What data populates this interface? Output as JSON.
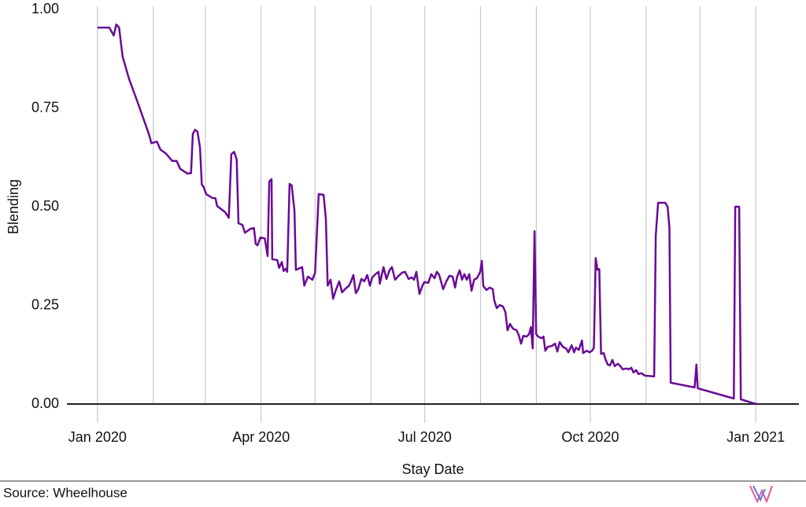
{
  "chart_data": {
    "type": "line",
    "xlabel": "Stay Date",
    "ylabel": "Blending",
    "source": "Source: Wheelhouse",
    "color": "#6a0a96",
    "xlim": [
      -17,
      390
    ],
    "ylim": [
      0,
      1
    ],
    "xticks": [
      {
        "value": 0,
        "label": "Jan 2020"
      },
      {
        "value": 91,
        "label": "Apr 2020"
      },
      {
        "value": 182,
        "label": "Jul 2020"
      },
      {
        "value": 274,
        "label": "Oct 2020"
      },
      {
        "value": 366,
        "label": "Jan 2021"
      }
    ],
    "xminor": [
      31,
      60,
      121,
      152,
      213,
      244,
      305,
      335
    ],
    "yticks": [
      {
        "value": 0,
        "label": "0.00"
      },
      {
        "value": 0.25,
        "label": "0.25"
      },
      {
        "value": 0.5,
        "label": "0.50"
      },
      {
        "value": 0.75,
        "label": "0.75"
      },
      {
        "value": 1,
        "label": "1.00"
      }
    ],
    "grid": true,
    "x": [
      0,
      6.6,
      9,
      10.5,
      12,
      14,
      17.5,
      22,
      25.4,
      28.5,
      30,
      33,
      35,
      38,
      41.6,
      44,
      46,
      50,
      52,
      53,
      54.3,
      55.6,
      57,
      58,
      59,
      60.4,
      64,
      65.6,
      66.5,
      71,
      73,
      74.4,
      76,
      77.4,
      78.4,
      80.6,
      82,
      85,
      87,
      88,
      89,
      90.6,
      93,
      94.6,
      95.5,
      96.8,
      97.2,
      100,
      101,
      102.5,
      103.5,
      104.6,
      105.5,
      106.8,
      108,
      109.5,
      110.3,
      113.8,
      115,
      117,
      119.5,
      121,
      123,
      125.7,
      127,
      128,
      129.6,
      131,
      132.7,
      134.4,
      136,
      138,
      139.7,
      141,
      142.3,
      143.6,
      145,
      146.7,
      148.4,
      150,
      151.5,
      152.8,
      154.6,
      156.3,
      157,
      159,
      160.7,
      162.4,
      163.7,
      165.5,
      167,
      169.4,
      171,
      173,
      174.7,
      176,
      177.3,
      179,
      180.4,
      181.7,
      183.9,
      185.6,
      187.4,
      188.7,
      190,
      192.2,
      194,
      195.7,
      197.5,
      198.8,
      200,
      201.4,
      202.7,
      204,
      205.3,
      206.7,
      208,
      209.4,
      211,
      212.8,
      213.7,
      214.5,
      216.3,
      218,
      219.8,
      220.6,
      222,
      223.7,
      225.5,
      226.8,
      228,
      229.4,
      231,
      233,
      234.2,
      235.5,
      236.8,
      238.6,
      240,
      241,
      242,
      243,
      243.9,
      245,
      246.9,
      248,
      249,
      250.4,
      252.6,
      254.4,
      255.7,
      257,
      258.7,
      260.5,
      261.8,
      263.6,
      265,
      266,
      267.6,
      269.4,
      270,
      272,
      273.6,
      275,
      276,
      277,
      278,
      279,
      280,
      281.5,
      282.4,
      283.7,
      285,
      286.3,
      287.6,
      289.4,
      290.7,
      292,
      294,
      295.5,
      296.8,
      298,
      299.5,
      300.8,
      302.5,
      304.3,
      309.5,
      310.4,
      311.7,
      315.7,
      317,
      318,
      318.7,
      332,
      333,
      333.7,
      353.8,
      354.6,
      356.8,
      357.7,
      364.7,
      366.9
    ],
    "values": [
      0.954,
      0.954,
      0.934,
      0.962,
      0.954,
      0.88,
      0.825,
      0.769,
      0.725,
      0.685,
      0.661,
      0.665,
      0.645,
      0.635,
      0.616,
      0.616,
      0.596,
      0.584,
      0.585,
      0.685,
      0.695,
      0.69,
      0.65,
      0.556,
      0.55,
      0.532,
      0.522,
      0.522,
      0.502,
      0.486,
      0.472,
      0.633,
      0.639,
      0.62,
      0.458,
      0.454,
      0.434,
      0.444,
      0.446,
      0.406,
      0.402,
      0.422,
      0.42,
      0.375,
      0.564,
      0.57,
      0.367,
      0.365,
      0.345,
      0.36,
      0.337,
      0.343,
      0.335,
      0.558,
      0.554,
      0.49,
      0.34,
      0.347,
      0.3,
      0.323,
      0.315,
      0.333,
      0.532,
      0.53,
      0.47,
      0.3,
      0.315,
      0.267,
      0.291,
      0.311,
      0.283,
      0.293,
      0.299,
      0.311,
      0.327,
      0.281,
      0.291,
      0.317,
      0.311,
      0.327,
      0.3,
      0.321,
      0.329,
      0.335,
      0.305,
      0.347,
      0.317,
      0.339,
      0.347,
      0.315,
      0.323,
      0.333,
      0.335,
      0.317,
      0.321,
      0.315,
      0.335,
      0.279,
      0.297,
      0.309,
      0.307,
      0.329,
      0.319,
      0.335,
      0.327,
      0.291,
      0.311,
      0.325,
      0.323,
      0.295,
      0.323,
      0.339,
      0.315,
      0.329,
      0.315,
      0.329,
      0.287,
      0.315,
      0.319,
      0.335,
      0.363,
      0.299,
      0.289,
      0.295,
      0.291,
      0.263,
      0.243,
      0.251,
      0.247,
      0.233,
      0.187,
      0.203,
      0.191,
      0.187,
      0.175,
      0.153,
      0.173,
      0.171,
      0.177,
      0.195,
      0.141,
      0.438,
      0.177,
      0.171,
      0.167,
      0.171,
      0.135,
      0.145,
      0.147,
      0.153,
      0.133,
      0.157,
      0.145,
      0.141,
      0.131,
      0.149,
      0.131,
      0.143,
      0.137,
      0.161,
      0.129,
      0.135,
      0.131,
      0.135,
      0.143,
      0.37,
      0.34,
      0.342,
      0.127,
      0.129,
      0.114,
      0.1,
      0.098,
      0.112,
      0.096,
      0.102,
      0.096,
      0.088,
      0.09,
      0.088,
      0.092,
      0.08,
      0.086,
      0.076,
      0.078,
      0.072,
      0.07,
      0.426,
      0.51,
      0.51,
      0.5,
      0.446,
      0.054,
      0.042,
      0.1,
      0.04,
      0.014,
      0.5,
      0.5,
      0.012,
      0.002,
      0
    ]
  }
}
